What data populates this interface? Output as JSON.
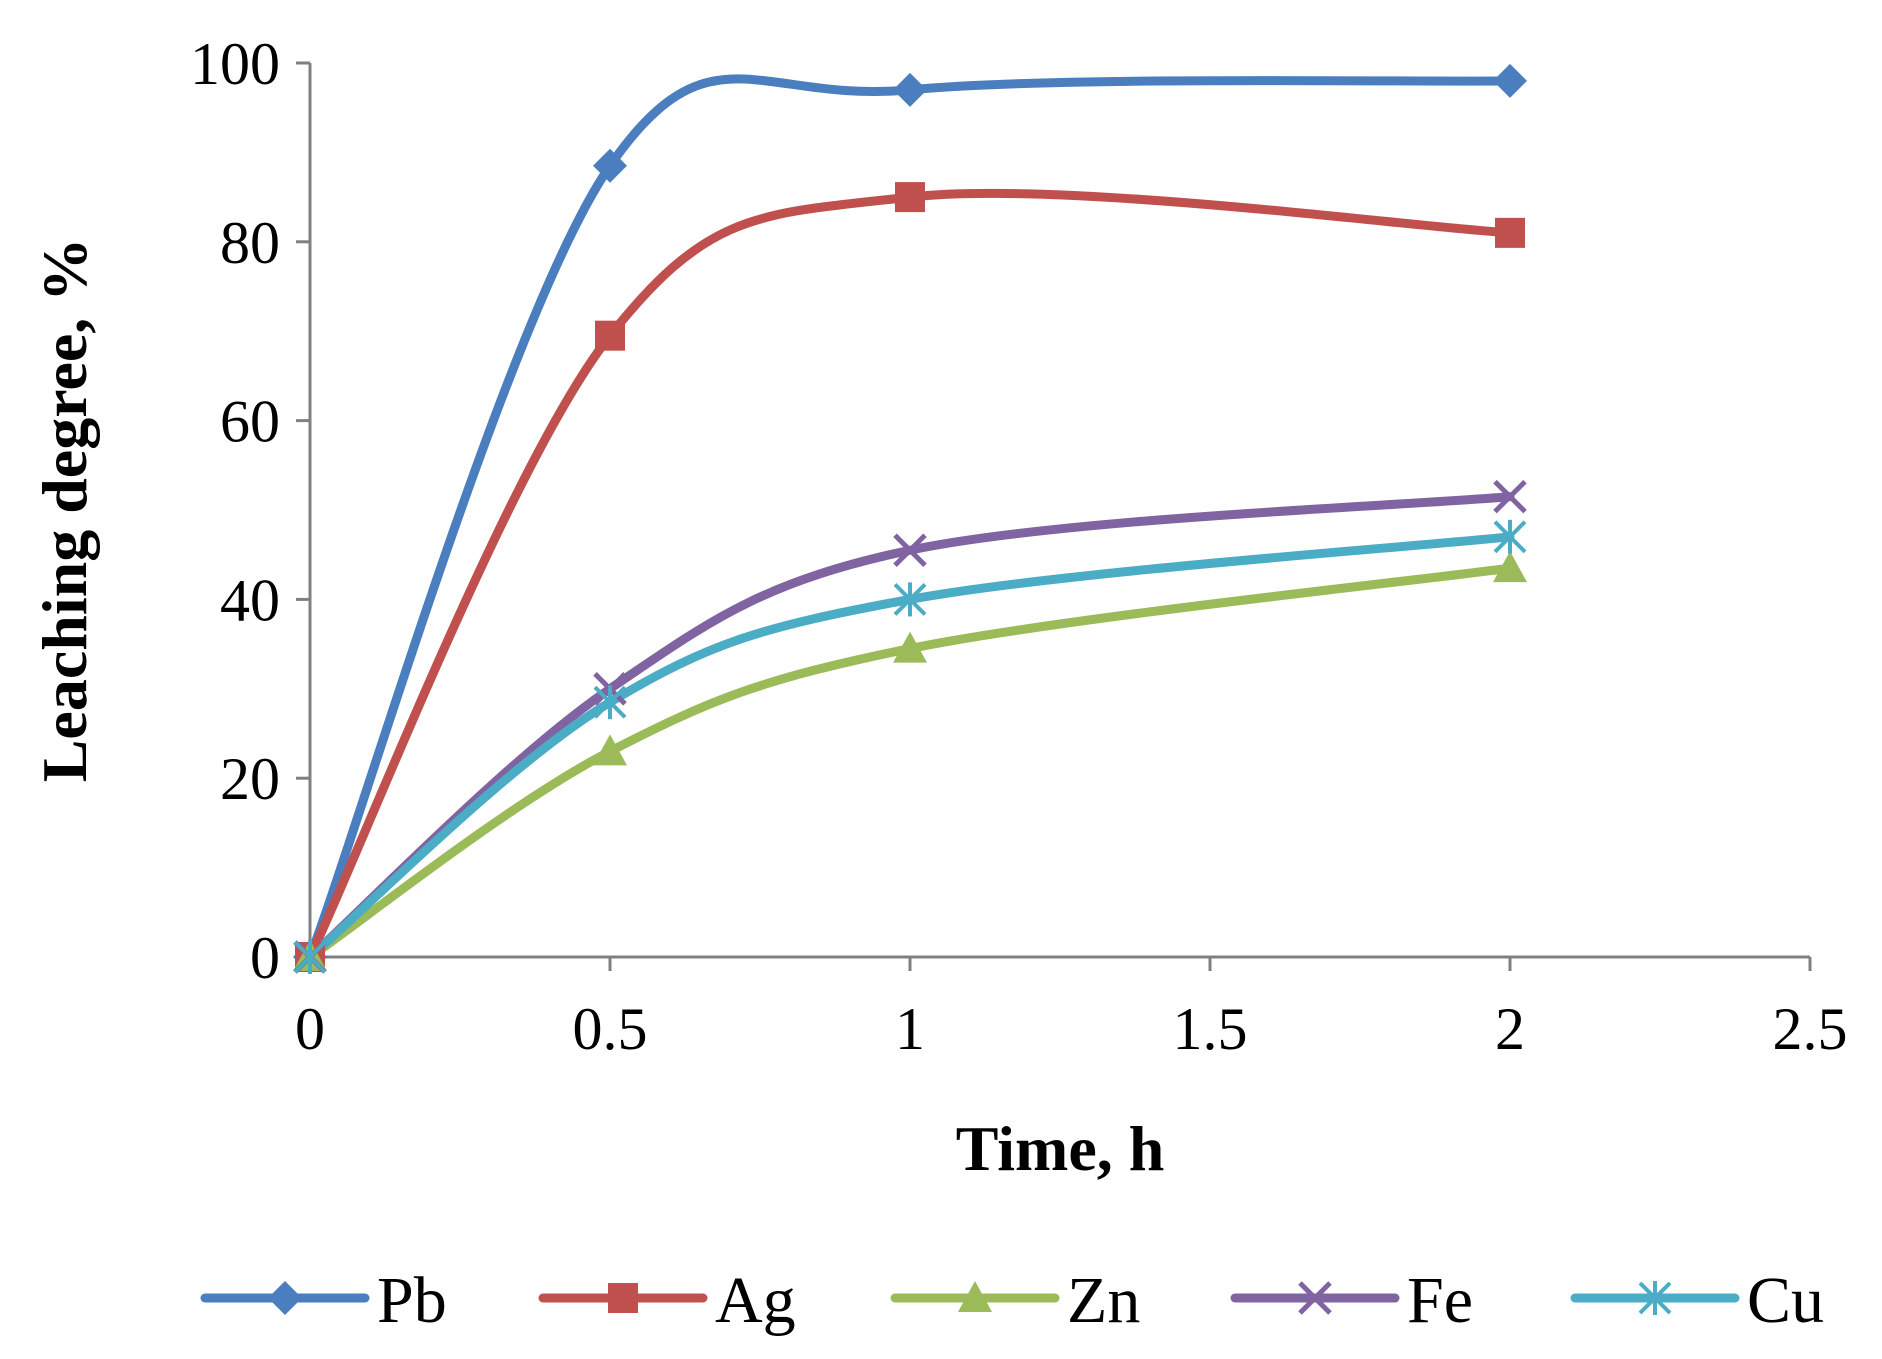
{
  "chart_data": {
    "type": "line",
    "title": "",
    "xlabel": "Time, h",
    "ylabel": "Leaching degree, %",
    "xlim": [
      0,
      2.5
    ],
    "ylim": [
      0,
      100
    ],
    "x_ticks": [
      0,
      0.5,
      1,
      1.5,
      2,
      2.5
    ],
    "x_tick_labels": [
      "0",
      "0.5",
      "1",
      "1.5",
      "2",
      "2.5"
    ],
    "y_ticks": [
      0,
      20,
      40,
      60,
      80,
      100
    ],
    "y_tick_labels": [
      "0",
      "20",
      "40",
      "60",
      "80",
      "100"
    ],
    "grid": false,
    "smooth": true,
    "legend_position": "bottom",
    "x": [
      0,
      0.5,
      1,
      2
    ],
    "series": [
      {
        "name": "Pb",
        "values": [
          0,
          88.5,
          97,
          98
        ],
        "color": "#4A7EBF",
        "marker": "diamond"
      },
      {
        "name": "Ag",
        "values": [
          0,
          69.5,
          85,
          81
        ],
        "color": "#C0504D",
        "marker": "square"
      },
      {
        "name": "Zn",
        "values": [
          0,
          23,
          34.5,
          43.5
        ],
        "color": "#9BBB59",
        "marker": "triangle"
      },
      {
        "name": "Fe",
        "values": [
          0,
          30,
          45.5,
          51.5
        ],
        "color": "#8064A2",
        "marker": "x"
      },
      {
        "name": "Cu",
        "values": [
          0,
          28.5,
          40,
          47
        ],
        "color": "#4BACC6",
        "marker": "star"
      }
    ]
  }
}
